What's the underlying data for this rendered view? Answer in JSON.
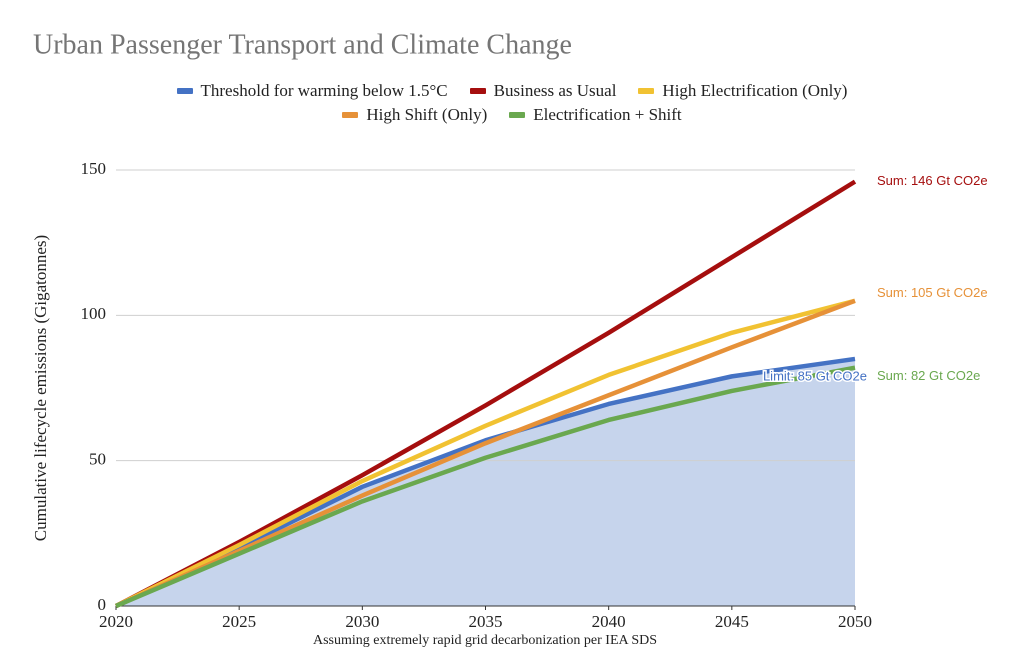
{
  "chart_data": {
    "type": "line",
    "title": "Urban Passenger Transport and Climate Change",
    "y_label": "Cumulative lifecycle emissions (Gigatonnes)",
    "x_label": "Assuming extremely rapid grid decarbonization per IEA SDS",
    "x": [
      2020,
      2025,
      2030,
      2035,
      2040,
      2045,
      2050
    ],
    "xlim": [
      2020,
      2050
    ],
    "xticks": [
      2020,
      2025,
      2030,
      2035,
      2040,
      2045,
      2050
    ],
    "ylim": [
      0,
      150
    ],
    "yticks": [
      0,
      50,
      100,
      150
    ],
    "grid": true,
    "series": [
      {
        "name": "Threshold for warming below 1.5°C",
        "color": "#4472c4",
        "fill": "#c6d4ec",
        "values": [
          0,
          20,
          41,
          57,
          69.5,
          79,
          85
        ],
        "label": "Limit: 85 Gt CO2e"
      },
      {
        "name": "Business as Usual",
        "color": "#a50e0e",
        "values": [
          0,
          22,
          45,
          69,
          94,
          120,
          146
        ],
        "label": "Sum: 146 Gt CO2e"
      },
      {
        "name": "High Electrification (Only)",
        "color": "#f1c232",
        "values": [
          0,
          21,
          43,
          62,
          79.5,
          94,
          105
        ],
        "label": "Sum: 105 Gt CO2e"
      },
      {
        "name": "High Shift (Only)",
        "color": "#e69138",
        "values": [
          0,
          19,
          38,
          56,
          72.5,
          89,
          105
        ],
        "label": "Sum: 105 Gt CO2e"
      },
      {
        "name": "Electrification + Shift",
        "color": "#6aa84f",
        "values": [
          0,
          18,
          36,
          51,
          64,
          74,
          82
        ],
        "label": "Sum: 82 Gt CO2e"
      }
    ]
  }
}
